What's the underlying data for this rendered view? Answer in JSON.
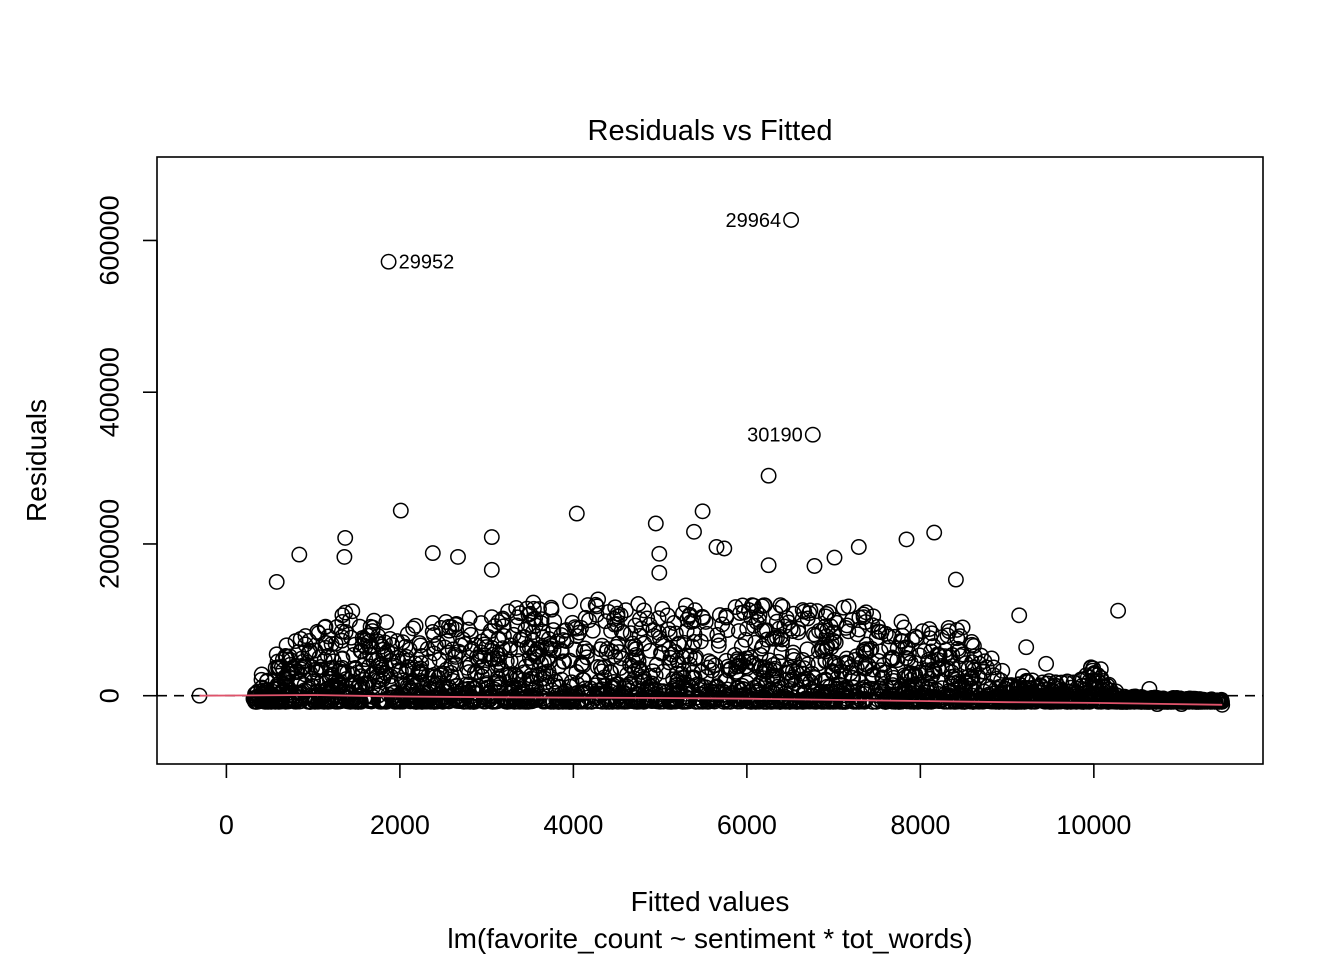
{
  "chart_data": {
    "type": "scatter",
    "title": "Residuals vs Fitted",
    "xlabel": "Fitted values",
    "subtitle": "lm(favorite_count ~ sentiment * tot_words)",
    "ylabel": "Residuals",
    "xlim": [
      -800,
      11950
    ],
    "ylim": [
      -90000,
      710000
    ],
    "x_ticks": [
      0,
      2000,
      4000,
      6000,
      8000,
      10000
    ],
    "y_ticks": [
      0,
      200000,
      400000,
      600000
    ],
    "reference_line_y": 0,
    "smooth_color": "#DF536B",
    "point_color": "#000000",
    "labeled_outliers": [
      {
        "label": "29952",
        "x": 1870,
        "y": 572000
      },
      {
        "label": "29964",
        "x": 6510,
        "y": 627000
      },
      {
        "label": "30190",
        "x": 6760,
        "y": 344000
      }
    ],
    "prominent_points": [
      {
        "x": -310,
        "y": 0
      },
      {
        "x": 580,
        "y": 150000
      },
      {
        "x": 840,
        "y": 186000
      },
      {
        "x": 1370,
        "y": 208000
      },
      {
        "x": 1360,
        "y": 183000
      },
      {
        "x": 2010,
        "y": 244000
      },
      {
        "x": 2380,
        "y": 188000
      },
      {
        "x": 2670,
        "y": 183000
      },
      {
        "x": 3060,
        "y": 209000
      },
      {
        "x": 3060,
        "y": 166000
      },
      {
        "x": 4040,
        "y": 240000
      },
      {
        "x": 4950,
        "y": 227000
      },
      {
        "x": 4990,
        "y": 187000
      },
      {
        "x": 4990,
        "y": 162000
      },
      {
        "x": 5390,
        "y": 216000
      },
      {
        "x": 5490,
        "y": 243000
      },
      {
        "x": 5650,
        "y": 196000
      },
      {
        "x": 5740,
        "y": 194000
      },
      {
        "x": 6250,
        "y": 290000
      },
      {
        "x": 6250,
        "y": 172000
      },
      {
        "x": 6780,
        "y": 171000
      },
      {
        "x": 7010,
        "y": 182000
      },
      {
        "x": 7290,
        "y": 196000
      },
      {
        "x": 7840,
        "y": 206000
      },
      {
        "x": 8160,
        "y": 215000
      },
      {
        "x": 8410,
        "y": 153000
      },
      {
        "x": 9140,
        "y": 106000
      },
      {
        "x": 9220,
        "y": 64000
      },
      {
        "x": 9450,
        "y": 42000
      },
      {
        "x": 10280,
        "y": 112000
      },
      {
        "x": 10080,
        "y": 35000
      },
      {
        "x": 10640,
        "y": 9000
      },
      {
        "x": 10730,
        "y": -11000
      },
      {
        "x": 11010,
        "y": -11000
      },
      {
        "x": 11480,
        "y": -12000
      }
    ],
    "point_cloud_envelope": {
      "x_range": [
        310,
        11480
      ],
      "upper_residual_by_fitted": [
        [
          310,
          20000
        ],
        [
          600,
          60000
        ],
        [
          1100,
          95000
        ],
        [
          1400,
          120000
        ],
        [
          2000,
          90000
        ],
        [
          2800,
          105000
        ],
        [
          3200,
          110000
        ],
        [
          3600,
          130000
        ],
        [
          4200,
          135000
        ],
        [
          4800,
          120000
        ],
        [
          5400,
          120000
        ],
        [
          6000,
          120000
        ],
        [
          6600,
          120000
        ],
        [
          7200,
          120000
        ],
        [
          7600,
          100000
        ],
        [
          8000,
          95000
        ],
        [
          8500,
          90000
        ],
        [
          8900,
          40000
        ],
        [
          9300,
          20000
        ],
        [
          9700,
          20000
        ],
        [
          10000,
          40000
        ],
        [
          10300,
          0
        ],
        [
          11500,
          -5000
        ]
      ]
    }
  }
}
